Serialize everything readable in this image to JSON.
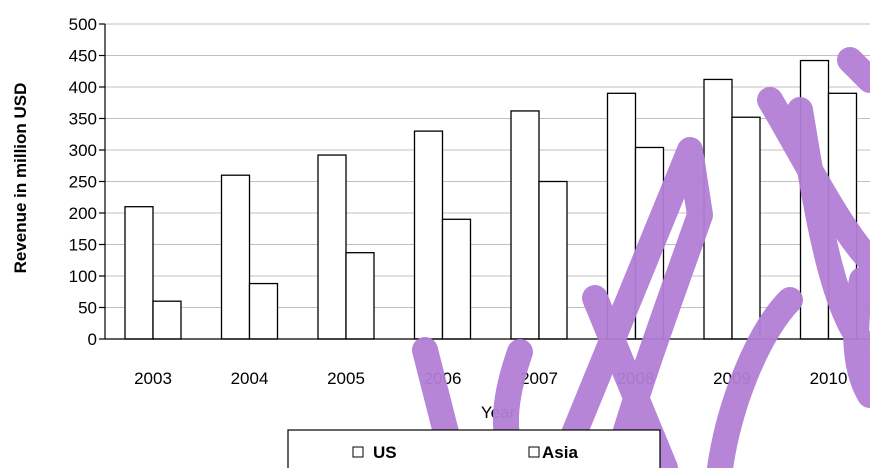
{
  "chart_data": {
    "type": "bar",
    "categories": [
      "2003",
      "2004",
      "2005",
      "2006",
      "2007",
      "2008",
      "2009",
      "2010"
    ],
    "series": [
      {
        "name": "US",
        "values": [
          210,
          260,
          292,
          330,
          362,
          390,
          412,
          442
        ]
      },
      {
        "name": "Asia",
        "values": [
          60,
          88,
          137,
          190,
          250,
          304,
          352,
          390
        ]
      }
    ],
    "xlabel": "Year",
    "ylabel": "Revenue in million USD",
    "ylim": [
      0,
      500
    ],
    "yticks": [
      0,
      50,
      100,
      150,
      200,
      250,
      300,
      350,
      400,
      450,
      500
    ],
    "grid": "horizontal",
    "legend": "bottom-center",
    "colors": {
      "bar_fill": "#ffffff",
      "bar_stroke": "#000000",
      "grid": "#c0c0c0",
      "watermark": "#b47fd6"
    }
  }
}
